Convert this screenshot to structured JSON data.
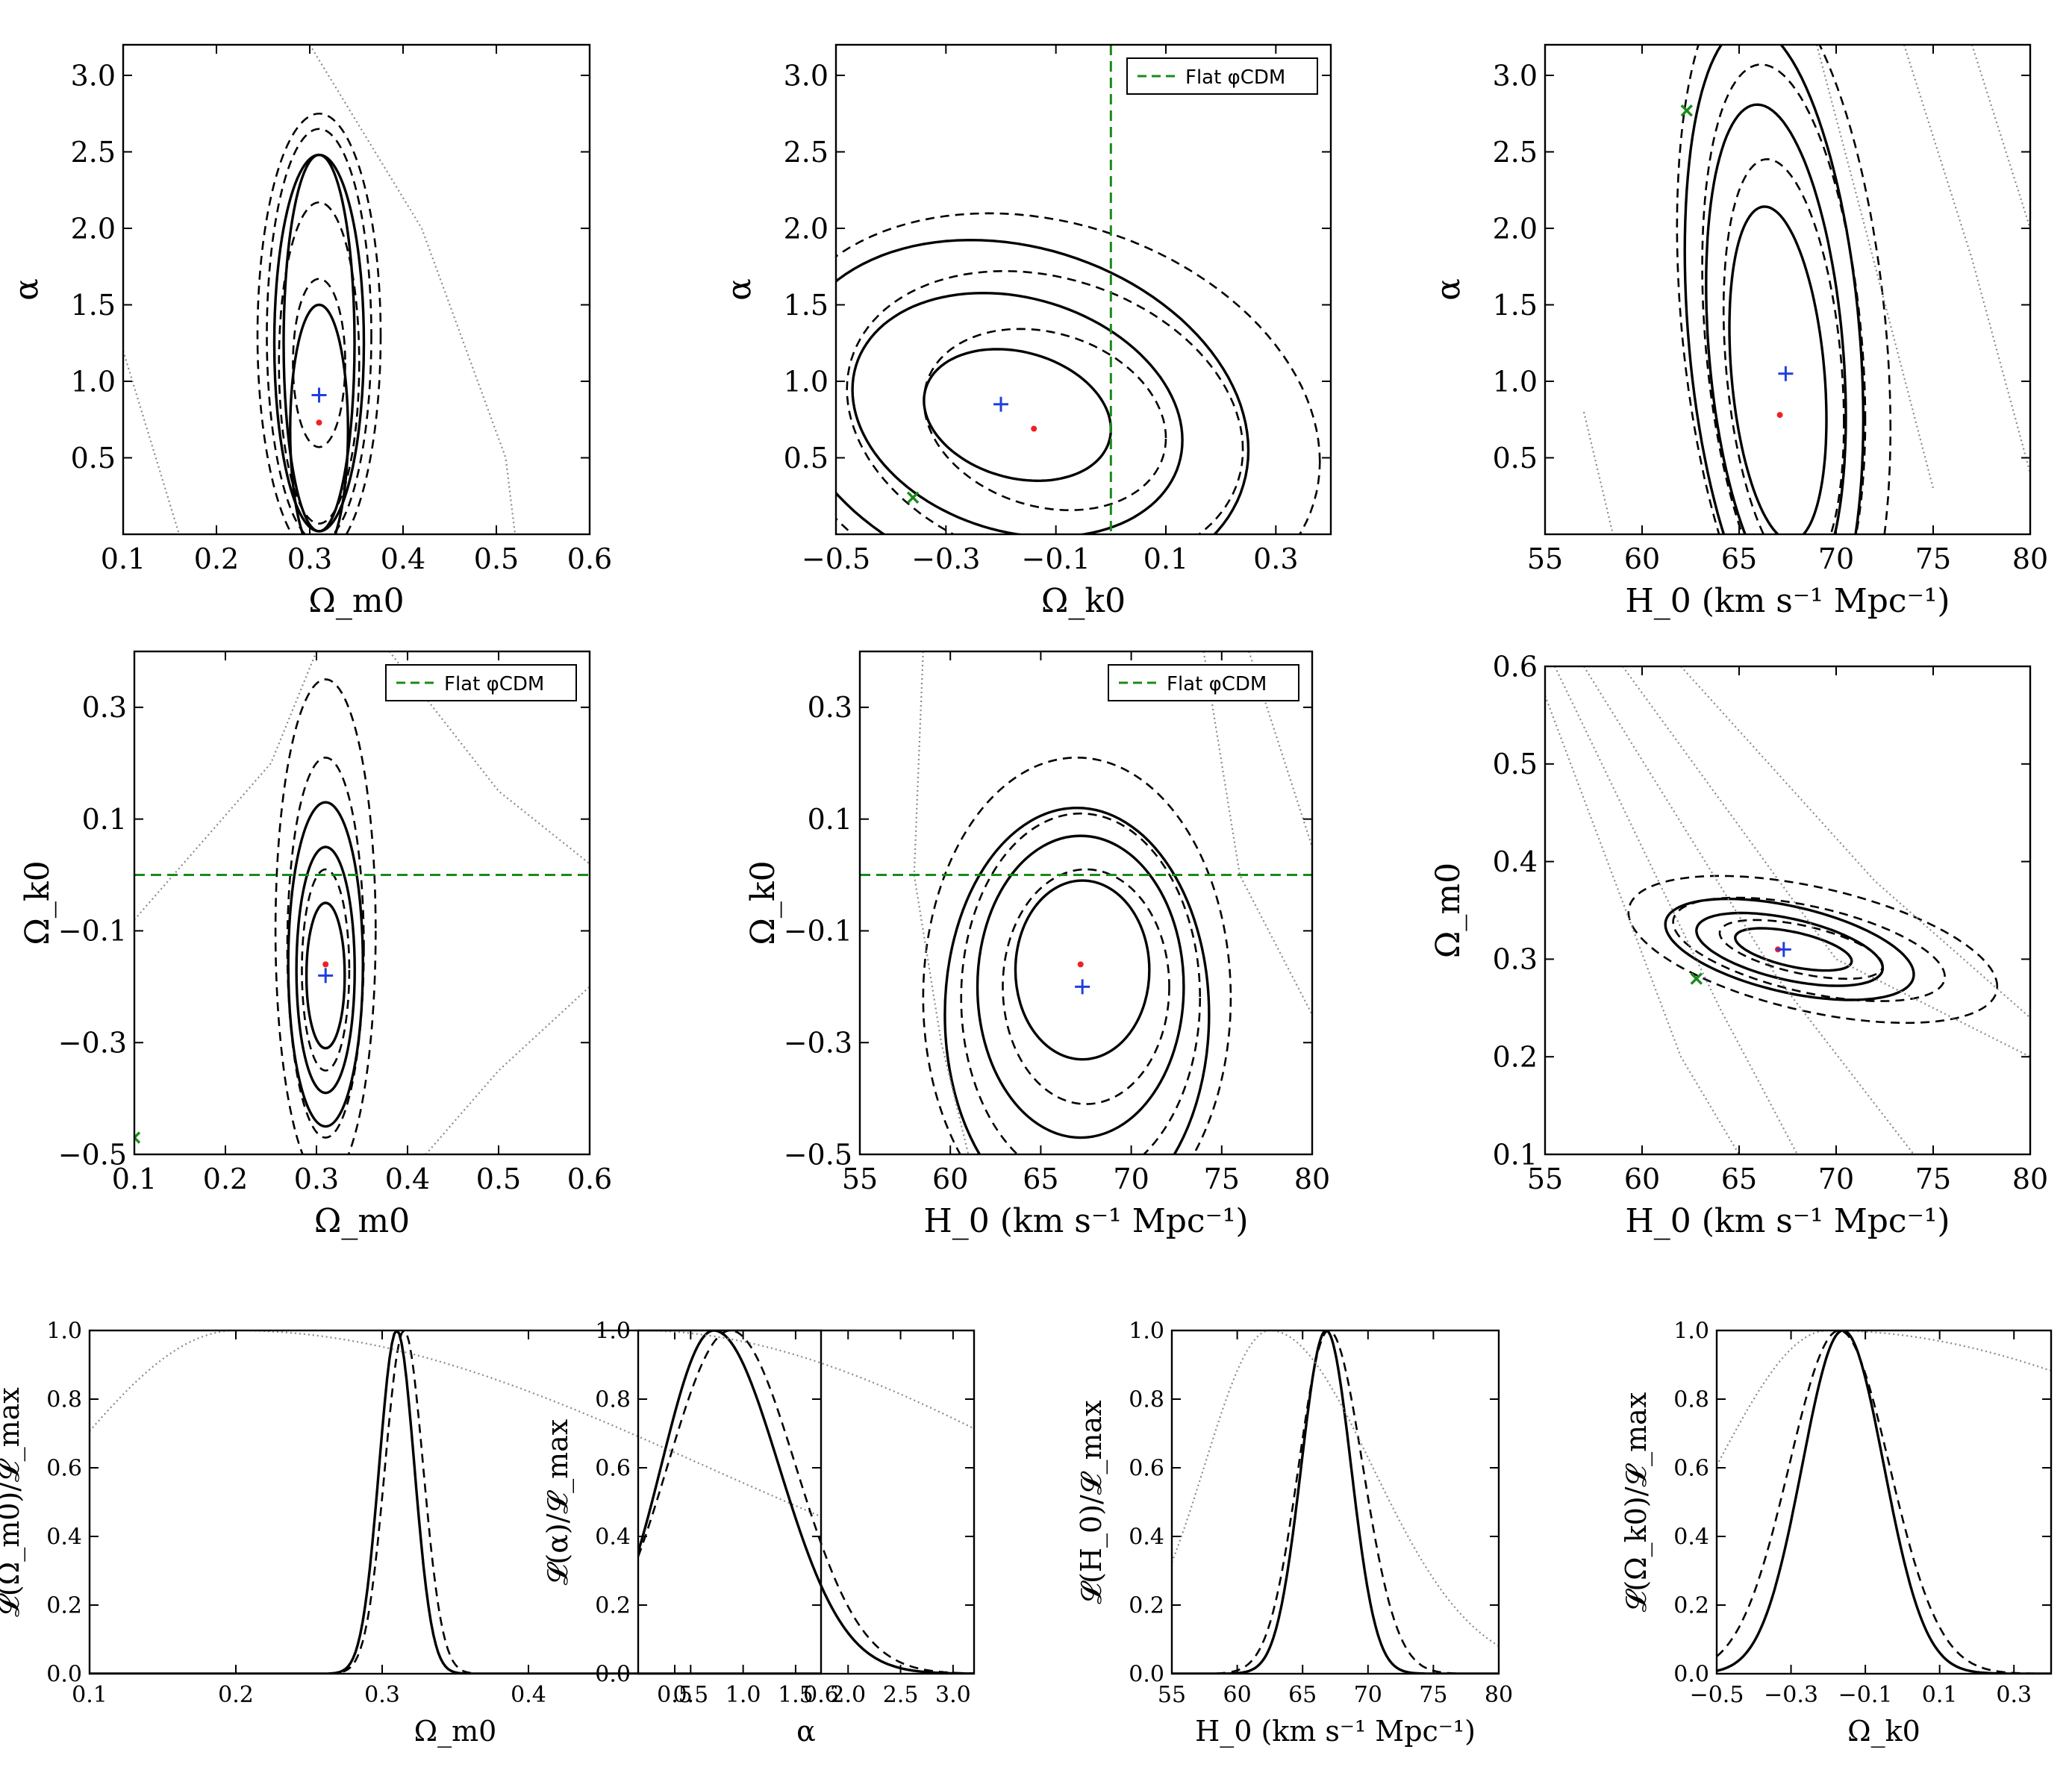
{
  "figure": {
    "description_free": true
  },
  "chart_data": [
    {
      "type": "contour",
      "id": "om-alpha",
      "xlabel": "Ω_m0",
      "ylabel": "α",
      "xlim": [
        0.1,
        0.6
      ],
      "ylim": [
        0,
        3.2
      ],
      "xticks": [
        "0.1",
        "0.2",
        "0.3",
        "0.4",
        "0.5",
        "0.6"
      ],
      "xtick_vals": [
        0.1,
        0.2,
        0.3,
        0.4,
        0.5,
        0.6
      ],
      "yticks": [
        "0.5",
        "1.0",
        "1.5",
        "2.0",
        "2.5",
        "3.0"
      ],
      "ytick_vals": [
        0.5,
        1.0,
        1.5,
        2.0,
        2.5,
        3.0
      ],
      "solid_levels": [
        [
          0.31,
          0.68,
          0.031,
          0.82
        ],
        [
          0.31,
          1.25,
          0.038,
          1.23
        ],
        [
          0.31,
          1.25,
          0.048,
          1.23
        ]
      ],
      "dashed_levels": [
        [
          0.31,
          1.12,
          0.028,
          0.55
        ],
        [
          0.31,
          1.12,
          0.043,
          1.05
        ],
        [
          0.31,
          1.3,
          0.056,
          1.35
        ],
        [
          0.31,
          1.3,
          0.066,
          1.45
        ]
      ],
      "dotted_lines": [
        [
          [
            0.1,
            1.2
          ],
          [
            0.13,
            0.6
          ],
          [
            0.16,
            0.0
          ]
        ],
        [
          [
            0.3,
            3.2
          ],
          [
            0.42,
            2.0
          ],
          [
            0.51,
            0.5
          ],
          [
            0.52,
            0.0
          ]
        ]
      ],
      "best_fit_blue": [
        0.31,
        0.91
      ],
      "best_fit_red": [
        0.31,
        0.73
      ],
      "green_x": null,
      "legend": null
    },
    {
      "type": "contour",
      "id": "ok-alpha",
      "xlabel": "Ω_k0",
      "ylabel": "α",
      "xlim": [
        -0.5,
        0.4
      ],
      "ylim": [
        0,
        3.2
      ],
      "xticks": [
        "−0.5",
        "−0.3",
        "−0.1",
        "0.1",
        "0.3"
      ],
      "xtick_vals": [
        -0.5,
        -0.3,
        -0.1,
        0.1,
        0.3
      ],
      "yticks": [
        "0.5",
        "1.0",
        "1.5",
        "2.0",
        "2.5",
        "3.0"
      ],
      "ytick_vals": [
        0.5,
        1.0,
        1.5,
        2.0,
        2.5,
        3.0
      ],
      "tilted_solid": [
        [
          -0.17,
          0.78,
          0.17,
          0.42,
          -0.55
        ],
        [
          -0.17,
          0.78,
          0.3,
          0.78,
          -0.55
        ],
        [
          -0.17,
          0.78,
          0.42,
          1.12,
          -0.55
        ]
      ],
      "tilted_dashed": [
        [
          -0.12,
          0.75,
          0.22,
          0.58,
          -0.55
        ],
        [
          -0.12,
          0.75,
          0.36,
          0.95,
          -0.55
        ],
        [
          -0.12,
          0.75,
          0.5,
          1.32,
          -0.55
        ]
      ],
      "flat_vline": 0.0,
      "best_fit_blue": [
        -0.2,
        0.85
      ],
      "best_fit_red": [
        -0.14,
        0.69
      ],
      "green_x": [
        -0.36,
        0.24
      ],
      "legend": "Flat φCDM"
    },
    {
      "type": "contour",
      "id": "h0-alpha",
      "xlabel": "H_0 (km s⁻¹ Mpc⁻¹)",
      "ylabel": "α",
      "xlim": [
        55,
        80
      ],
      "ylim": [
        0,
        3.2
      ],
      "xticks": [
        "55",
        "60",
        "65",
        "70",
        "75",
        "80"
      ],
      "xtick_vals": [
        55,
        60,
        65,
        70,
        75,
        80
      ],
      "yticks": [
        "0.5",
        "1.0",
        "1.5",
        "2.0",
        "2.5",
        "3.0"
      ],
      "ytick_vals": [
        0.5,
        1.0,
        1.5,
        2.0,
        2.5,
        3.0
      ],
      "tilted_solid": [
        [
          67.0,
          1.05,
          2.5,
          1.05,
          -0.12
        ],
        [
          66.9,
          1.2,
          3.6,
          1.55,
          -0.12
        ],
        [
          66.8,
          1.3,
          4.6,
          1.95,
          -0.12
        ]
      ],
      "tilted_dashed": [
        [
          67.3,
          1.1,
          3.1,
          1.3,
          -0.12
        ],
        [
          67.3,
          1.25,
          4.2,
          1.75,
          -0.12
        ],
        [
          67.3,
          1.35,
          5.5,
          2.2,
          -0.12
        ]
      ],
      "dotted_lines": [
        [
          [
            57,
            0.8
          ],
          [
            58.5,
            0.0
          ]
        ],
        [
          [
            69,
            3.2
          ],
          [
            71.5,
            2.0
          ],
          [
            75,
            0.3
          ]
        ],
        [
          [
            73.5,
            3.2
          ],
          [
            77,
            1.8
          ],
          [
            80,
            0.4
          ]
        ],
        [
          [
            77,
            3.2
          ],
          [
            80,
            2.0
          ]
        ]
      ],
      "best_fit_blue": [
        67.4,
        1.05
      ],
      "best_fit_red": [
        67.1,
        0.78
      ],
      "green_x": [
        62.3,
        2.77
      ],
      "legend": null
    },
    {
      "type": "contour",
      "id": "om-ok",
      "xlabel": "Ω_m0",
      "ylabel": "Ω_k0",
      "xlim": [
        0.1,
        0.6
      ],
      "ylim": [
        -0.5,
        0.4
      ],
      "xticks": [
        "0.1",
        "0.2",
        "0.3",
        "0.4",
        "0.5",
        "0.6"
      ],
      "xtick_vals": [
        0.1,
        0.2,
        0.3,
        0.4,
        0.5,
        0.6
      ],
      "yticks": [
        "−0.5",
        "−0.3",
        "−0.1",
        "0.1",
        "0.3"
      ],
      "ytick_vals": [
        -0.5,
        -0.3,
        -0.1,
        0.1,
        0.3
      ],
      "solid_levels": [
        [
          0.31,
          -0.18,
          0.021,
          0.13
        ],
        [
          0.31,
          -0.17,
          0.032,
          0.22
        ],
        [
          0.31,
          -0.16,
          0.041,
          0.29
        ]
      ],
      "dashed_levels": [
        [
          0.31,
          -0.17,
          0.026,
          0.18
        ],
        [
          0.31,
          -0.13,
          0.042,
          0.34
        ],
        [
          0.31,
          -0.1,
          0.055,
          0.45
        ]
      ],
      "dotted_lines": [
        [
          [
            0.1,
            -0.08
          ],
          [
            0.25,
            0.2
          ],
          [
            0.3,
            0.4
          ]
        ],
        [
          [
            0.38,
            0.4
          ],
          [
            0.5,
            0.15
          ],
          [
            0.6,
            0.02
          ]
        ],
        [
          [
            0.42,
            -0.5
          ],
          [
            0.5,
            -0.35
          ],
          [
            0.6,
            -0.2
          ]
        ]
      ],
      "flat_hline": 0.0,
      "best_fit_blue": [
        0.31,
        -0.18
      ],
      "best_fit_red": [
        0.31,
        -0.16
      ],
      "green_x": [
        0.1,
        -0.47
      ],
      "legend": "Flat φCDM"
    },
    {
      "type": "contour",
      "id": "h0-ok",
      "xlabel": "H_0 (km s⁻¹ Mpc⁻¹)",
      "ylabel": "Ω_k0",
      "xlim": [
        55,
        80
      ],
      "ylim": [
        -0.5,
        0.4
      ],
      "xticks": [
        "55",
        "60",
        "65",
        "70",
        "75",
        "80"
      ],
      "xtick_vals": [
        55,
        60,
        65,
        70,
        75,
        80
      ],
      "yticks": [
        "−0.5",
        "−0.3",
        "−0.1",
        "0.1",
        "0.3"
      ],
      "ytick_vals": [
        -0.5,
        -0.3,
        -0.1,
        0.1,
        0.3
      ],
      "solid_levels": [
        [
          67.3,
          -0.17,
          3.7,
          0.16
        ],
        [
          67.2,
          -0.2,
          5.7,
          0.27
        ],
        [
          67.0,
          -0.25,
          7.3,
          0.37
        ]
      ],
      "dashed_levels": [
        [
          67.5,
          -0.2,
          4.6,
          0.21
        ],
        [
          67.2,
          -0.22,
          6.6,
          0.33
        ],
        [
          67.0,
          -0.22,
          8.5,
          0.43
        ]
      ],
      "dotted_lines": [
        [
          [
            58.5,
            0.4
          ],
          [
            58,
            0.0
          ],
          [
            59.5,
            -0.3
          ],
          [
            61,
            -0.5
          ]
        ],
        [
          [
            74,
            0.4
          ],
          [
            76,
            0.0
          ],
          [
            80,
            -0.25
          ]
        ],
        [
          [
            76.5,
            0.4
          ],
          [
            79,
            0.15
          ],
          [
            80,
            0.05
          ]
        ]
      ],
      "flat_hline": 0.0,
      "best_fit_blue": [
        67.3,
        -0.2
      ],
      "best_fit_red": [
        67.2,
        -0.16
      ],
      "green_x": null,
      "legend": "Flat φCDM"
    },
    {
      "type": "contour",
      "id": "h0-om",
      "xlabel": "H_0 (km s⁻¹ Mpc⁻¹)",
      "ylabel": "Ω_m0",
      "xlim": [
        55,
        80
      ],
      "ylim": [
        0.1,
        0.6
      ],
      "xticks": [
        "55",
        "60",
        "65",
        "70",
        "75",
        "80"
      ],
      "xtick_vals": [
        55,
        60,
        65,
        70,
        75,
        80
      ],
      "yticks": [
        "0.1",
        "0.2",
        "0.3",
        "0.4",
        "0.5",
        "0.6"
      ],
      "ytick_vals": [
        0.1,
        0.2,
        0.3,
        0.4,
        0.5,
        0.6
      ],
      "tilted_solid": [
        [
          67.8,
          0.31,
          3.0,
          0.018,
          -0.004
        ],
        [
          67.6,
          0.31,
          4.8,
          0.032,
          -0.004
        ],
        [
          67.6,
          0.31,
          6.4,
          0.045,
          -0.004
        ]
      ],
      "tilted_dashed": [
        [
          68.2,
          0.31,
          4.2,
          0.025,
          -0.004
        ],
        [
          68.6,
          0.31,
          7.0,
          0.045,
          -0.004
        ],
        [
          68.8,
          0.31,
          9.5,
          0.065,
          -0.004
        ]
      ],
      "dotted_lines": [
        [
          [
            55,
            0.57
          ],
          [
            62,
            0.2
          ],
          [
            65,
            0.1
          ]
        ],
        [
          [
            55.5,
            0.6
          ],
          [
            64,
            0.25
          ],
          [
            68,
            0.1
          ]
        ],
        [
          [
            57,
            0.6
          ],
          [
            67,
            0.28
          ],
          [
            74,
            0.1
          ]
        ],
        [
          [
            59,
            0.6
          ],
          [
            70,
            0.3
          ],
          [
            80,
            0.2
          ]
        ],
        [
          [
            62,
            0.6
          ],
          [
            72,
            0.38
          ],
          [
            80,
            0.24
          ]
        ]
      ],
      "best_fit_blue": [
        67.3,
        0.31
      ],
      "best_fit_red": [
        67.0,
        0.31
      ],
      "green_x": [
        62.8,
        0.28
      ],
      "legend": null
    },
    {
      "type": "line",
      "id": "L-om",
      "xlabel": "Ω_m0",
      "ylabel": "𝓛(Ω_m0)/𝓛_max",
      "xlim": [
        0.1,
        0.6
      ],
      "ylim": [
        0,
        1
      ],
      "xticks": [
        "0.1",
        "0.2",
        "0.3",
        "0.4",
        "0.5",
        "0.6"
      ],
      "xtick_vals": [
        0.1,
        0.2,
        0.3,
        0.4,
        0.5,
        0.6
      ],
      "yticks": [
        "0.0",
        "0.2",
        "0.4",
        "0.6",
        "0.8",
        "1.0"
      ],
      "ytick_vals": [
        0,
        0.2,
        0.4,
        0.6,
        0.8,
        1.0
      ],
      "series": [
        {
          "name": "solid",
          "style": "solid",
          "kind": "gauss",
          "mu": 0.31,
          "sigma": 0.012
        },
        {
          "name": "dashed",
          "style": "dashed",
          "kind": "gauss",
          "mu": 0.315,
          "sigma": 0.013
        },
        {
          "name": "dotted",
          "style": "dotted",
          "kind": "peak",
          "peak": 0.2,
          "sl": 0.12,
          "sr": 0.32
        }
      ]
    },
    {
      "type": "line",
      "id": "L-alpha",
      "xlabel": "α",
      "ylabel": "𝓛(α)/𝓛_max",
      "xlim": [
        0,
        3.2
      ],
      "ylim": [
        0,
        1
      ],
      "xticks": [
        "0.5",
        "1.0",
        "1.5",
        "2.0",
        "2.5",
        "3.0"
      ],
      "xtick_vals": [
        0.5,
        1.0,
        1.5,
        2.0,
        2.5,
        3.0
      ],
      "yticks": [
        "0.0",
        "0.2",
        "0.4",
        "0.6",
        "0.8",
        "1.0"
      ],
      "ytick_vals": [
        0,
        0.2,
        0.4,
        0.6,
        0.8,
        1.0
      ],
      "series": [
        {
          "name": "solid",
          "style": "solid",
          "kind": "asym",
          "peak": 0.72,
          "sl": 0.5,
          "sr": 0.62
        },
        {
          "name": "dashed",
          "style": "dashed",
          "kind": "asym",
          "peak": 0.88,
          "sl": 0.6,
          "sr": 0.62
        },
        {
          "name": "dotted",
          "style": "dotted",
          "kind": "peak",
          "peak": 0.0,
          "sl": 1.0,
          "sr": 3.9
        }
      ]
    },
    {
      "type": "line",
      "id": "L-h0",
      "xlabel": "H_0 (km s⁻¹ Mpc⁻¹)",
      "ylabel": "𝓛(H_0)/𝓛_max",
      "xlim": [
        55,
        80
      ],
      "ylim": [
        0,
        1
      ],
      "xticks": [
        "55",
        "60",
        "65",
        "70",
        "75",
        "80"
      ],
      "xtick_vals": [
        55,
        60,
        65,
        70,
        75,
        80
      ],
      "yticks": [
        "0.0",
        "0.2",
        "0.4",
        "0.6",
        "0.8",
        "1.0"
      ],
      "ytick_vals": [
        0,
        0.2,
        0.4,
        0.6,
        0.8,
        1.0
      ],
      "series": [
        {
          "name": "solid",
          "style": "solid",
          "kind": "gauss",
          "mu": 66.8,
          "sigma": 1.9
        },
        {
          "name": "dashed",
          "style": "dashed",
          "kind": "asym",
          "peak": 67.0,
          "sl": 2.3,
          "sr": 2.6
        },
        {
          "name": "dotted",
          "style": "dotted",
          "kind": "peak",
          "peak": 62.5,
          "sl": 5.0,
          "sr": 7.8
        }
      ]
    },
    {
      "type": "line",
      "id": "L-ok",
      "xlabel": "Ω_k0",
      "ylabel": "𝓛(Ω_k0)/𝓛_max",
      "xlim": [
        -0.5,
        0.4
      ],
      "ylim": [
        0,
        1
      ],
      "xticks": [
        "−0.5",
        "−0.3",
        "−0.1",
        "0.1",
        "0.3"
      ],
      "xtick_vals": [
        -0.5,
        -0.3,
        -0.1,
        0.1,
        0.3
      ],
      "yticks": [
        "0.0",
        "0.2",
        "0.4",
        "0.6",
        "0.8",
        "1.0"
      ],
      "ytick_vals": [
        0,
        0.2,
        0.4,
        0.6,
        0.8,
        1.0
      ],
      "series": [
        {
          "name": "solid",
          "style": "solid",
          "kind": "gauss",
          "mu": -0.16,
          "sigma": 0.11
        },
        {
          "name": "dashed",
          "style": "dashed",
          "kind": "gauss",
          "mu": -0.17,
          "sigma": 0.135
        },
        {
          "name": "dotted",
          "style": "dotted",
          "kind": "peak",
          "peak": -0.2,
          "sl": 0.3,
          "sr": 1.2
        }
      ]
    }
  ]
}
